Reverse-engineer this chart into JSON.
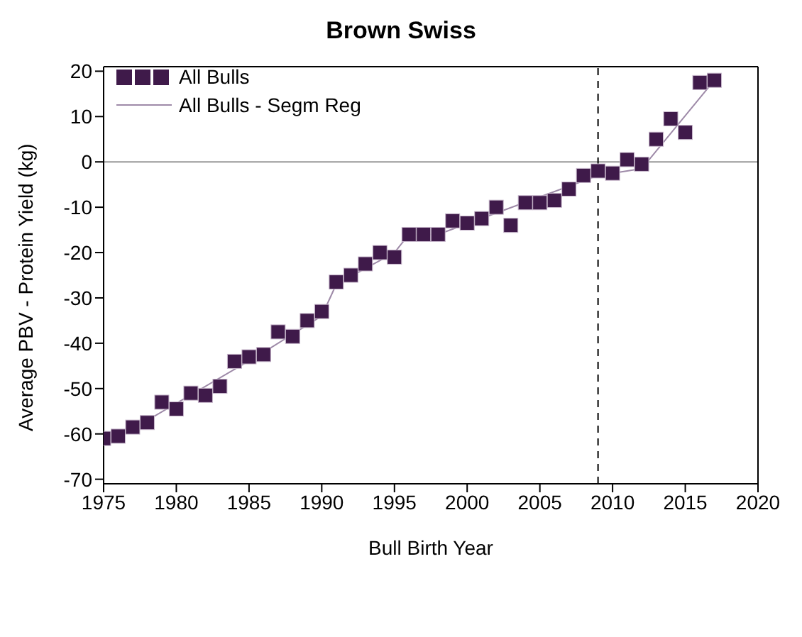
{
  "chart_data": {
    "type": "scatter",
    "title": "Brown Swiss",
    "xlabel": "Bull Birth Year",
    "ylabel": "Average PBV - Protein Yield (kg)",
    "xlim": [
      1975,
      2020
    ],
    "xticks": [
      1975,
      1980,
      1985,
      1990,
      1995,
      2000,
      2005,
      2010,
      2015,
      2020
    ],
    "ylim": [
      -71,
      21
    ],
    "yticks": [
      -70,
      -60,
      -50,
      -40,
      -30,
      -20,
      -10,
      0,
      10,
      20
    ],
    "legend": "top left",
    "series": [
      {
        "name": "All Bulls",
        "marker": "square",
        "color": "#3f1a4a",
        "x": [
          1975,
          1976,
          1977,
          1978,
          1979,
          1980,
          1981,
          1982,
          1983,
          1984,
          1985,
          1986,
          1987,
          1988,
          1989,
          1990,
          1991,
          1992,
          1993,
          1994,
          1995,
          1996,
          1997,
          1998,
          1999,
          2000,
          2001,
          2002,
          2003,
          2004,
          2005,
          2006,
          2007,
          2008,
          2009,
          2010,
          2011,
          2012,
          2013,
          2014,
          2015,
          2016,
          2017
        ],
        "values": [
          -61,
          -60.5,
          -58.5,
          -57.5,
          -53,
          -54.5,
          -51,
          -51.5,
          -49.5,
          -44,
          -43,
          -42.5,
          -37.5,
          -38.5,
          -35,
          -33,
          -26.5,
          -25,
          -22.5,
          -20,
          -21,
          -16,
          -16,
          -16,
          -13,
          -13.5,
          -12.5,
          -10,
          -14,
          -9,
          -9,
          -8.5,
          -6,
          -3,
          -2,
          -2.5,
          0.5,
          -0.5,
          5,
          9.5,
          6.5,
          17.5,
          18
        ]
      },
      {
        "name": "All Bulls - Segm Reg",
        "type": "line",
        "marker": "none",
        "line_style": "solid",
        "color": "#9e8aa8",
        "x": [
          1975,
          1978,
          1986,
          1990,
          1991,
          1995,
          1996,
          1998,
          2009,
          2012,
          2017
        ],
        "values": [
          -61.5,
          -57,
          -42,
          -34,
          -27,
          -20,
          -16,
          -16,
          -3,
          -1.5,
          18
        ]
      }
    ],
    "ref_lines": [
      {
        "axis": "y",
        "value": 0,
        "color": "#999999",
        "line_style": "solid"
      },
      {
        "axis": "x",
        "value": 2009,
        "color": "#000000",
        "line_style": "dashed"
      }
    ]
  }
}
